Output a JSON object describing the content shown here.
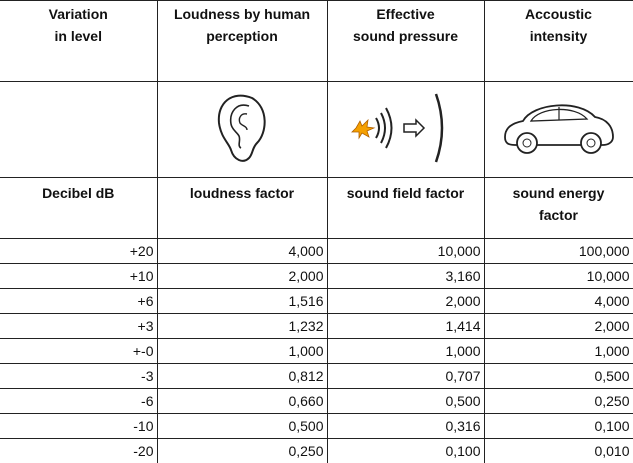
{
  "header": [
    [
      "Variation",
      "in level"
    ],
    [
      "Loudness by human",
      "perception"
    ],
    [
      "Effective",
      "sound pressure"
    ],
    [
      "Accoustic",
      "intensity"
    ]
  ],
  "subheader": [
    [
      "Decibel dB"
    ],
    [
      "loudness factor"
    ],
    [
      "sound field factor"
    ],
    [
      "sound energy",
      "factor"
    ]
  ],
  "rows": [
    [
      "+20",
      "4,000",
      "10,000",
      "100,000"
    ],
    [
      "+10",
      "2,000",
      "3,160",
      "10,000"
    ],
    [
      "+6",
      "1,516",
      "2,000",
      "4,000"
    ],
    [
      "+3",
      "1,232",
      "1,414",
      "2,000"
    ],
    [
      "+-0",
      "1,000",
      "1,000",
      "1,000"
    ],
    [
      "-3",
      "0,812",
      "0,707",
      "0,500"
    ],
    [
      "-6",
      "0,660",
      "0,500",
      "0,250"
    ],
    [
      "-10",
      "0,500",
      "0,316",
      "0,100"
    ],
    [
      "-20",
      "0,250",
      "0,100",
      "0,010"
    ]
  ]
}
